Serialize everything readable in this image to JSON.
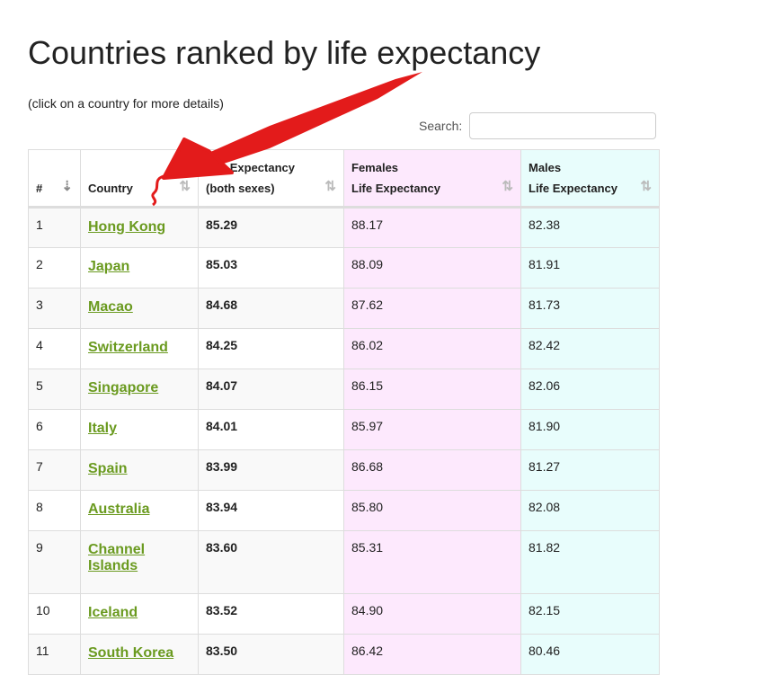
{
  "title": "Countries ranked by life expectancy",
  "subtitle": "(click on a country for more details)",
  "search": {
    "label": "Search:",
    "value": ""
  },
  "headers": {
    "rank": "#",
    "country": "Country",
    "both_line1": "Life Expectancy",
    "both_line2": "(both sexes)",
    "fem_line1": "Females",
    "fem_line2": "Life Expectancy",
    "male_line1": "Males",
    "male_line2": "Life Expectancy"
  },
  "annotation_color": "#e31b1b",
  "rows": [
    {
      "rank": "1",
      "country": "Hong Kong",
      "both": "85.29",
      "female": "88.17",
      "male": "82.38"
    },
    {
      "rank": "2",
      "country": "Japan",
      "both": "85.03",
      "female": "88.09",
      "male": "81.91"
    },
    {
      "rank": "3",
      "country": "Macao",
      "both": "84.68",
      "female": "87.62",
      "male": "81.73"
    },
    {
      "rank": "4",
      "country": "Switzerland",
      "both": "84.25",
      "female": "86.02",
      "male": "82.42"
    },
    {
      "rank": "5",
      "country": "Singapore",
      "both": "84.07",
      "female": "86.15",
      "male": "82.06"
    },
    {
      "rank": "6",
      "country": "Italy",
      "both": "84.01",
      "female": "85.97",
      "male": "81.90"
    },
    {
      "rank": "7",
      "country": "Spain",
      "both": "83.99",
      "female": "86.68",
      "male": "81.27"
    },
    {
      "rank": "8",
      "country": "Australia",
      "both": "83.94",
      "female": "85.80",
      "male": "82.08"
    },
    {
      "rank": "9",
      "country": "Channel Islands",
      "both": "83.60",
      "female": "85.31",
      "male": "81.82"
    },
    {
      "rank": "10",
      "country": "Iceland",
      "both": "83.52",
      "female": "84.90",
      "male": "82.15"
    },
    {
      "rank": "11",
      "country": "South Korea",
      "both": "83.50",
      "female": "86.42",
      "male": "80.46"
    }
  ]
}
